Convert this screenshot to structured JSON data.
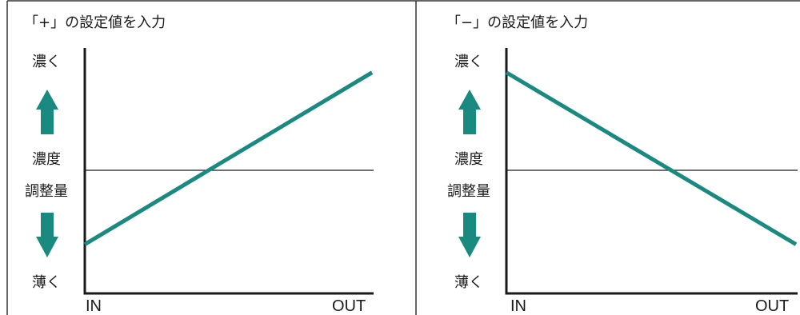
{
  "colors": {
    "line": "#1a8a80",
    "arrow": "#1a8a80",
    "axis": "#1a1a1a",
    "border": "#333333"
  },
  "panels": [
    {
      "title": "「+」の設定値を入力",
      "y_top_label": "濃く",
      "y_mid_label_1": "濃度",
      "y_mid_label_2": "調整量",
      "y_bottom_label": "薄く",
      "x_start_label": "IN",
      "x_end_label": "OUT",
      "line_direction": "increasing",
      "line_start_level": 0.2,
      "line_end_level": 0.9
    },
    {
      "title": "「−」の設定値を入力",
      "y_top_label": "濃く",
      "y_mid_label_1": "濃度",
      "y_mid_label_2": "調整量",
      "y_bottom_label": "薄く",
      "x_start_label": "IN",
      "x_end_label": "OUT",
      "line_direction": "decreasing",
      "line_start_level": 0.9,
      "line_end_level": 0.2
    }
  ]
}
